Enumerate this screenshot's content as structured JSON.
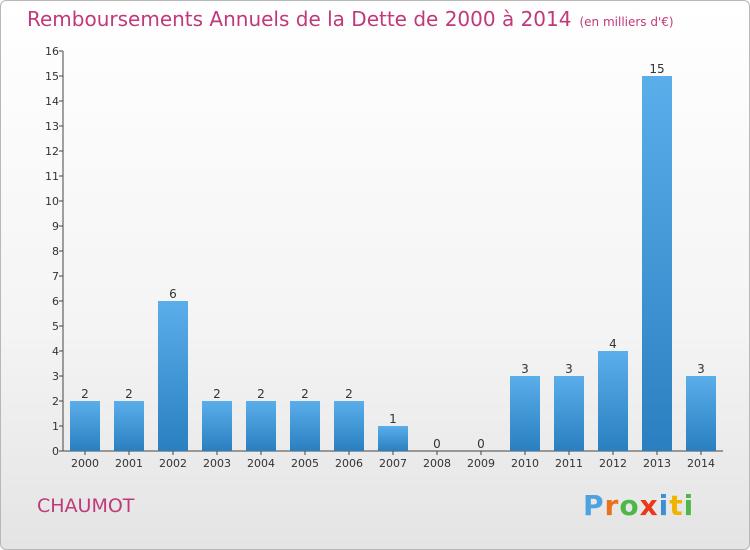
{
  "header": {
    "title": "Remboursements Annuels de la Dette de 2000 à 2014",
    "unit": "(en milliers d'€)"
  },
  "footer": {
    "commune": "CHAUMOT",
    "brand_letters": [
      "P",
      "r",
      "o",
      "x",
      "i",
      "t",
      "i"
    ],
    "brand_colors": [
      "#4da3e0",
      "#e8731a",
      "#4db848",
      "#e8391a",
      "#3c8fd6",
      "#f0b400",
      "#4db848"
    ]
  },
  "chart_data": {
    "type": "bar",
    "title": "Remboursements Annuels de la Dette de 2000 à 2014",
    "xlabel": "",
    "ylabel": "",
    "categories": [
      "2000",
      "2001",
      "2002",
      "2003",
      "2004",
      "2005",
      "2006",
      "2007",
      "2008",
      "2009",
      "2010",
      "2011",
      "2012",
      "2013",
      "2014"
    ],
    "values": [
      2,
      2,
      6,
      2,
      2,
      2,
      2,
      1,
      0,
      0,
      3,
      3,
      4,
      15,
      3
    ],
    "ylim": [
      0,
      16
    ],
    "yticks": [
      0,
      1,
      2,
      3,
      4,
      5,
      6,
      7,
      8,
      9,
      10,
      11,
      12,
      13,
      14,
      15,
      16
    ],
    "grid": false,
    "bar_color_light": "#5aaeea",
    "bar_color_dark": "#2a7fc0"
  }
}
